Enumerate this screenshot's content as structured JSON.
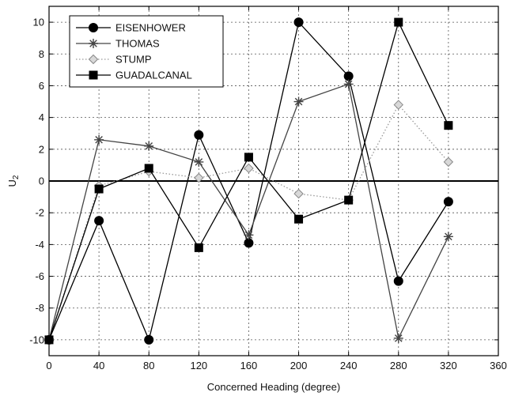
{
  "chart_data": {
    "type": "line",
    "title": "",
    "xlabel": "Concerned Heading (degree)",
    "ylabel_main": "U",
    "ylabel_sub": "2",
    "xlim": [
      0,
      360
    ],
    "ylim": [
      -11,
      11
    ],
    "xticks": [
      0,
      40,
      80,
      120,
      160,
      200,
      240,
      280,
      320,
      360
    ],
    "yticks": [
      -10,
      -8,
      -6,
      -4,
      -2,
      0,
      2,
      4,
      6,
      8,
      10
    ],
    "grid": true,
    "legend_position": "top-left",
    "x": [
      0,
      40,
      80,
      120,
      160,
      200,
      240,
      280,
      320
    ],
    "series": [
      {
        "name": "EISENHOWER",
        "marker": "circle",
        "line": "solid",
        "color": "#000000",
        "values": [
          -10,
          -2.5,
          -10,
          2.9,
          -3.9,
          10,
          6.6,
          -6.3,
          -1.3
        ]
      },
      {
        "name": "THOMAS",
        "marker": "star",
        "line": "solid",
        "color": "#444444",
        "values": [
          -10,
          2.6,
          2.2,
          1.2,
          -3.4,
          5.0,
          6.1,
          -9.9,
          -3.5
        ]
      },
      {
        "name": "STUMP",
        "marker": "diamond",
        "line": "dotted",
        "color": "#999999",
        "values": [
          -10,
          -0.3,
          0.6,
          0.2,
          0.8,
          -0.8,
          -1.2,
          4.8,
          1.2
        ]
      },
      {
        "name": "GUADALCANAL",
        "marker": "square",
        "line": "solid",
        "color": "#000000",
        "values": [
          -10,
          -0.5,
          0.8,
          -4.2,
          1.5,
          -2.4,
          -1.2,
          10,
          3.5
        ]
      }
    ]
  }
}
